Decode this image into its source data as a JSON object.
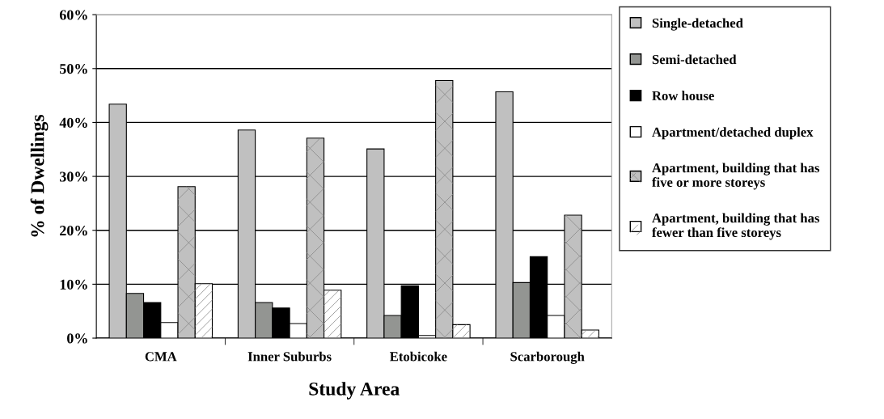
{
  "chart_data": {
    "type": "bar",
    "xlabel": "Study Area",
    "ylabel": "% of Dwellings",
    "categories": [
      "CMA",
      "Inner Suburbs",
      "Etobicoke",
      "Scarborough"
    ],
    "series": [
      {
        "name": "Single-detached",
        "color": "#c0c0c0",
        "values": [
          43.4,
          38.6,
          35.1,
          45.7
        ]
      },
      {
        "name": "Semi-detached",
        "color": "#939592",
        "values": [
          8.3,
          6.6,
          4.2,
          10.3
        ]
      },
      {
        "name": "Row house",
        "color": "#000000",
        "values": [
          6.6,
          5.6,
          9.7,
          15.1
        ]
      },
      {
        "name": "Apartment/detached duplex",
        "color": "#ffffff",
        "values": [
          2.9,
          2.7,
          0.5,
          4.2
        ]
      },
      {
        "name": "Apartment, building that has\nfive or more storeys",
        "color": "#c0c0c0",
        "values": [
          28.1,
          37.1,
          47.8,
          22.8
        ]
      },
      {
        "name": "Apartment, building that has\nfewer than five storeys",
        "color": "#ffffff",
        "values": [
          10.1,
          8.9,
          2.5,
          1.5
        ]
      }
    ],
    "ylim": [
      0,
      60
    ],
    "yticks": [
      {
        "value": 0,
        "label": "0%"
      },
      {
        "value": 10,
        "label": "10%"
      },
      {
        "value": 20,
        "label": "20%"
      },
      {
        "value": 30,
        "label": "30%"
      },
      {
        "value": 40,
        "label": "40%"
      },
      {
        "value": 50,
        "label": "50%"
      },
      {
        "value": 60,
        "label": "60%"
      }
    ],
    "grid": "y",
    "legend": "right"
  }
}
